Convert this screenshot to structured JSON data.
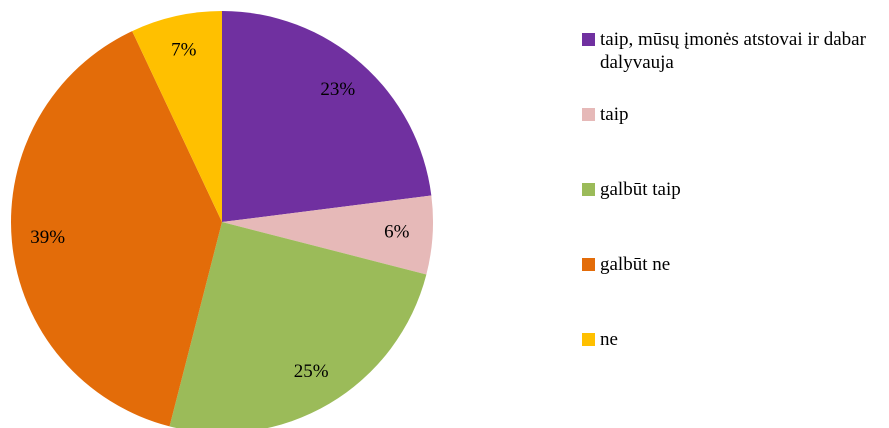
{
  "chart_data": {
    "type": "pie",
    "categories": [
      "taip, mūsų įmonės atstovai ir dabar dalyvauja",
      "taip",
      "galbūt taip",
      "galbūt ne",
      "ne"
    ],
    "values": [
      23,
      6,
      25,
      39,
      7
    ],
    "value_labels": [
      "23%",
      "6%",
      "25%",
      "39%",
      "7%"
    ],
    "colors": [
      "#7030a0",
      "#e6b9b8",
      "#9bbb59",
      "#e36c09",
      "#ffc000"
    ],
    "legend": "right"
  }
}
